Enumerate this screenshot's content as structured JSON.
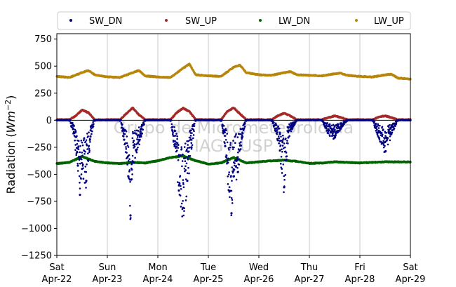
{
  "chart_data": {
    "type": "scatter",
    "ylabel_prefix": "Radiation (",
    "ylabel_unit": "Wm",
    "ylabel_exp": "−2",
    "ylabel_suffix": ")",
    "ylim": [
      -1250,
      800
    ],
    "yticks": [
      -1250,
      -1000,
      -750,
      -500,
      -250,
      0,
      250,
      500,
      750
    ],
    "ytick_labels": [
      "−1250",
      "−1000",
      "−750",
      "−500",
      "−250",
      "0",
      "250",
      "500",
      "750"
    ],
    "xlim": [
      "2018-04-22",
      "2018-04-29"
    ],
    "xticks": [
      {
        "day": "Sat",
        "date": "Apr-22"
      },
      {
        "day": "Sun",
        "date": "Apr-23"
      },
      {
        "day": "Mon",
        "date": "Apr-24"
      },
      {
        "day": "Tue",
        "date": "Apr-25"
      },
      {
        "day": "Wed",
        "date": "Apr-26"
      },
      {
        "day": "Thu",
        "date": "Apr-27"
      },
      {
        "day": "Fri",
        "date": "Apr-28"
      },
      {
        "day": "Sat",
        "date": "Apr-29"
      }
    ],
    "grid": "vertical",
    "legend_placement": "top",
    "watermark": [
      "Grupo de Micrometeorologia",
      "IAG / USP"
    ],
    "colors": {
      "SW_DN": "#000080",
      "SW_UP": "#a52a2a",
      "LW_DN": "#006400",
      "LW_UP": "#b8860b"
    },
    "series": [
      {
        "name": "SW_DN",
        "x": [
          "Apr-22 00:00",
          "Apr-22 06:00",
          "Apr-22 08:00",
          "Apr-22 10:00",
          "Apr-22 11:00",
          "Apr-22 12:00",
          "Apr-22 14:00",
          "Apr-22 16:00",
          "Apr-22 18:00",
          "Apr-23 00:00",
          "Apr-23 06:00",
          "Apr-23 08:00",
          "Apr-23 10:00",
          "Apr-23 11:00",
          "Apr-23 12:00",
          "Apr-23 14:00",
          "Apr-23 16:00",
          "Apr-23 18:00",
          "Apr-24 00:00",
          "Apr-24 06:00",
          "Apr-24 08:00",
          "Apr-24 10:00",
          "Apr-24 12:00",
          "Apr-24 14:00",
          "Apr-24 16:00",
          "Apr-24 18:00",
          "Apr-25 00:00",
          "Apr-25 06:00",
          "Apr-25 08:00",
          "Apr-25 10:00",
          "Apr-25 11:00",
          "Apr-25 12:00",
          "Apr-25 14:00",
          "Apr-25 16:00",
          "Apr-25 18:00",
          "Apr-26 00:00",
          "Apr-26 06:00",
          "Apr-26 08:00",
          "Apr-26 10:00",
          "Apr-26 12:00",
          "Apr-26 14:00",
          "Apr-26 16:00",
          "Apr-26 18:00",
          "Apr-27 00:00",
          "Apr-27 06:00",
          "Apr-27 09:00",
          "Apr-27 12:00",
          "Apr-27 15:00",
          "Apr-27 18:00",
          "Apr-28 00:00",
          "Apr-28 06:00",
          "Apr-28 09:00",
          "Apr-28 12:00",
          "Apr-28 15:00",
          "Apr-28 18:00",
          "Apr-29 00:00"
        ],
        "y": [
          0,
          -5,
          -120,
          -420,
          -690,
          -450,
          -560,
          -150,
          -5,
          0,
          -5,
          -180,
          -520,
          -880,
          -380,
          -270,
          -150,
          -5,
          0,
          -5,
          -240,
          -650,
          -810,
          -560,
          -250,
          -5,
          0,
          -5,
          -240,
          -660,
          -860,
          -520,
          -480,
          -160,
          -5,
          0,
          -5,
          -100,
          -280,
          -620,
          -160,
          -70,
          -5,
          0,
          -5,
          -120,
          -160,
          -70,
          -5,
          0,
          -5,
          -160,
          -290,
          -120,
          -5,
          0
        ]
      },
      {
        "name": "SW_UP",
        "x": [
          "Apr-22 00:00",
          "Apr-22 06:00",
          "Apr-22 09:00",
          "Apr-22 12:00",
          "Apr-22 15:00",
          "Apr-22 18:00",
          "Apr-23 00:00",
          "Apr-23 06:00",
          "Apr-23 09:00",
          "Apr-23 12:00",
          "Apr-23 15:00",
          "Apr-23 18:00",
          "Apr-24 00:00",
          "Apr-24 06:00",
          "Apr-24 09:00",
          "Apr-24 12:00",
          "Apr-24 15:00",
          "Apr-24 18:00",
          "Apr-25 00:00",
          "Apr-25 06:00",
          "Apr-25 09:00",
          "Apr-25 12:00",
          "Apr-25 15:00",
          "Apr-25 18:00",
          "Apr-26 00:00",
          "Apr-26 06:00",
          "Apr-26 09:00",
          "Apr-26 12:00",
          "Apr-26 15:00",
          "Apr-26 18:00",
          "Apr-27 00:00",
          "Apr-27 06:00",
          "Apr-27 09:00",
          "Apr-27 12:00",
          "Apr-27 15:00",
          "Apr-27 18:00",
          "Apr-28 00:00",
          "Apr-28 06:00",
          "Apr-28 09:00",
          "Apr-28 12:00",
          "Apr-28 15:00",
          "Apr-28 18:00",
          "Apr-29 00:00"
        ],
        "y": [
          5,
          5,
          40,
          95,
          70,
          5,
          5,
          5,
          60,
          115,
          50,
          5,
          5,
          5,
          70,
          112,
          80,
          5,
          5,
          5,
          80,
          115,
          60,
          5,
          5,
          5,
          40,
          65,
          40,
          5,
          5,
          5,
          25,
          40,
          25,
          5,
          5,
          5,
          30,
          40,
          25,
          5,
          5
        ]
      },
      {
        "name": "LW_DN",
        "x": [
          "Apr-22 00:00",
          "Apr-22 06:00",
          "Apr-22 12:00",
          "Apr-22 18:00",
          "Apr-23 00:00",
          "Apr-23 06:00",
          "Apr-23 12:00",
          "Apr-23 18:00",
          "Apr-24 00:00",
          "Apr-24 06:00",
          "Apr-24 12:00",
          "Apr-24 18:00",
          "Apr-25 00:00",
          "Apr-25 06:00",
          "Apr-25 12:00",
          "Apr-25 18:00",
          "Apr-26 00:00",
          "Apr-26 06:00",
          "Apr-26 12:00",
          "Apr-26 18:00",
          "Apr-27 00:00",
          "Apr-27 06:00",
          "Apr-27 12:00",
          "Apr-27 18:00",
          "Apr-28 00:00",
          "Apr-28 06:00",
          "Apr-28 12:00",
          "Apr-28 18:00",
          "Apr-29 00:00"
        ],
        "y": [
          -400,
          -390,
          -335,
          -380,
          -395,
          -400,
          -390,
          -395,
          -375,
          -345,
          -330,
          -375,
          -405,
          -395,
          -345,
          -395,
          -385,
          -375,
          -370,
          -380,
          -400,
          -395,
          -385,
          -390,
          -395,
          -390,
          -385,
          -385,
          -385
        ]
      },
      {
        "name": "LW_UP",
        "x": [
          "Apr-22 00:00",
          "Apr-22 06:00",
          "Apr-22 12:00",
          "Apr-22 15:00",
          "Apr-22 18:00",
          "Apr-23 00:00",
          "Apr-23 06:00",
          "Apr-23 12:00",
          "Apr-23 15:00",
          "Apr-23 18:00",
          "Apr-24 00:00",
          "Apr-24 06:00",
          "Apr-24 12:00",
          "Apr-24 15:00",
          "Apr-24 18:00",
          "Apr-25 00:00",
          "Apr-25 06:00",
          "Apr-25 12:00",
          "Apr-25 15:00",
          "Apr-25 18:00",
          "Apr-26 00:00",
          "Apr-26 06:00",
          "Apr-26 12:00",
          "Apr-26 15:00",
          "Apr-26 18:00",
          "Apr-27 00:00",
          "Apr-27 06:00",
          "Apr-27 12:00",
          "Apr-27 15:00",
          "Apr-27 18:00",
          "Apr-28 00:00",
          "Apr-28 06:00",
          "Apr-28 12:00",
          "Apr-28 15:00",
          "Apr-28 18:00",
          "Apr-29 00:00"
        ],
        "y": [
          405,
          395,
          440,
          460,
          420,
          400,
          395,
          440,
          460,
          410,
          400,
          395,
          480,
          520,
          420,
          410,
          405,
          490,
          510,
          440,
          420,
          415,
          440,
          450,
          420,
          415,
          410,
          430,
          435,
          415,
          405,
          400,
          420,
          425,
          390,
          380
        ]
      }
    ]
  }
}
